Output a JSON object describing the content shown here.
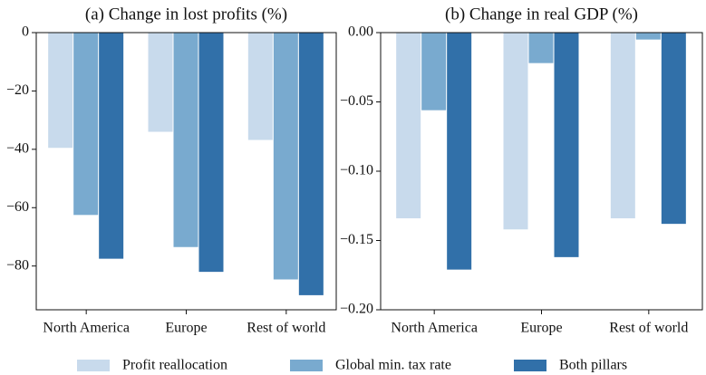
{
  "chart_data": [
    {
      "type": "bar",
      "title": "(a) Change in lost profits (%)",
      "categories": [
        "North America",
        "Europe",
        "Rest of world"
      ],
      "series": [
        {
          "name": "Profit reallocation",
          "color": "#c8daec",
          "values": [
            -39.5,
            -34,
            -36.8
          ]
        },
        {
          "name": "Global min. tax rate",
          "color": "#79aacf",
          "values": [
            -62.5,
            -73.5,
            -84.6
          ]
        },
        {
          "name": "Both pillars",
          "color": "#3170a9",
          "values": [
            -77.5,
            -82,
            -90
          ]
        }
      ],
      "ylim": [
        -95,
        0
      ],
      "yticks": [
        0,
        {
          "value": -20,
          "label": "−20"
        },
        {
          "value": -40,
          "label": "−40"
        },
        {
          "value": -60,
          "label": "−60"
        },
        {
          "value": -80,
          "label": "−80"
        }
      ]
    },
    {
      "type": "bar",
      "title": "(b) Change in real GDP (%)",
      "categories": [
        "North America",
        "Europe",
        "Rest of world"
      ],
      "series": [
        {
          "color": "#c8daec",
          "values": [
            -0.134,
            -0.142,
            -0.134
          ]
        },
        {
          "color": "#79aacf",
          "values": [
            -0.056,
            -0.022,
            -0.005
          ]
        },
        {
          "color": "#3170a9",
          "values": [
            -0.171,
            -0.162,
            -0.138
          ]
        }
      ],
      "ylim": [
        -0.2,
        0
      ],
      "yticks": [
        {
          "value": 0,
          "label": "0.00"
        },
        {
          "value": -0.05,
          "label": "−0.05"
        },
        {
          "value": -0.1,
          "label": "−0.10"
        },
        {
          "value": -0.15,
          "label": "−0.15"
        },
        {
          "value": -0.2,
          "label": "−0.20"
        }
      ]
    }
  ]
}
